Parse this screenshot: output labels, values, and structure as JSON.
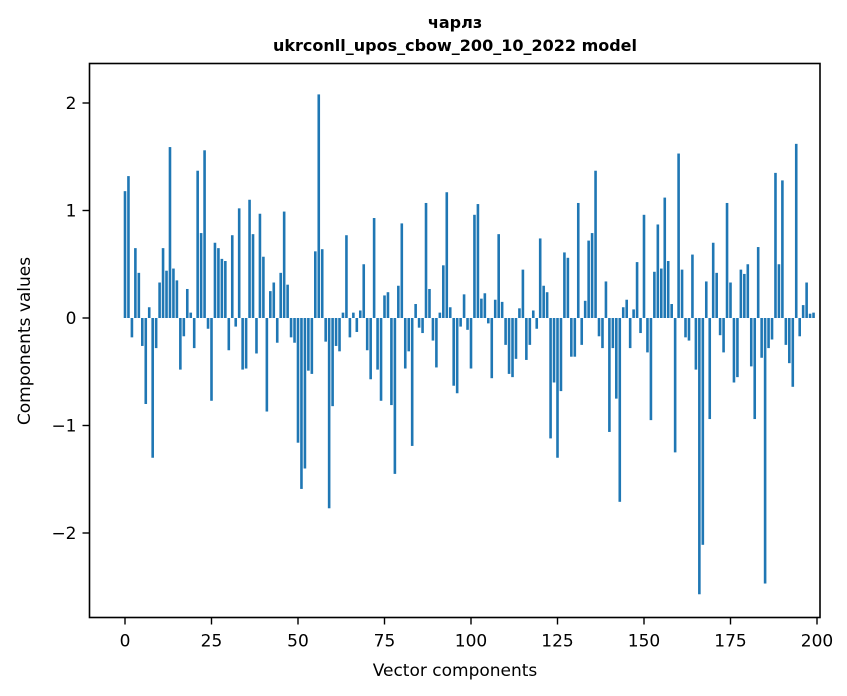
{
  "figure": {
    "background": "#ffffff",
    "spine_color": "#000000"
  },
  "chart_data": {
    "type": "bar",
    "title_line1": "чарлз",
    "title_line2": "ukrconll_upos_cbow_200_10_2022 model",
    "xlabel": "Vector components",
    "ylabel": "Components values",
    "bar_color": "#1f77b4",
    "grid": false,
    "legend": false,
    "x_start": 0,
    "x_end": 199,
    "xticks": [
      0,
      25,
      50,
      75,
      100,
      125,
      150,
      175,
      200
    ],
    "yticks": [
      2,
      1,
      0,
      -1,
      -2
    ],
    "xlim": [
      -10.2,
      200.9
    ],
    "ylim": [
      -2.79,
      2.37
    ],
    "values": [
      1.18,
      1.32,
      -0.18,
      0.65,
      0.42,
      -0.26,
      -0.8,
      0.1,
      -1.3,
      -0.28,
      0.33,
      0.65,
      0.44,
      1.59,
      0.46,
      0.35,
      -0.48,
      -0.17,
      0.27,
      0.05,
      -0.28,
      1.37,
      0.79,
      1.56,
      -0.1,
      -0.77,
      0.7,
      0.65,
      0.55,
      0.53,
      -0.3,
      0.77,
      -0.08,
      1.02,
      -0.48,
      -0.47,
      1.1,
      0.78,
      -0.33,
      0.97,
      0.57,
      -0.87,
      0.25,
      0.33,
      -0.23,
      0.42,
      0.99,
      0.31,
      -0.18,
      -0.23,
      -1.16,
      -1.59,
      -1.4,
      -0.49,
      -0.52,
      0.62,
      2.08,
      0.64,
      -0.22,
      -1.77,
      -0.82,
      -0.26,
      -0.31,
      0.05,
      0.77,
      -0.18,
      0.05,
      -0.13,
      0.07,
      0.5,
      -0.3,
      -0.57,
      0.93,
      -0.48,
      -0.77,
      0.21,
      0.24,
      -0.81,
      -1.45,
      0.3,
      0.88,
      -0.47,
      -0.31,
      -1.19,
      0.13,
      -0.09,
      -0.14,
      1.07,
      0.27,
      -0.21,
      -0.46,
      0.05,
      0.49,
      1.17,
      0.1,
      -0.63,
      -0.7,
      -0.08,
      0.22,
      -0.11,
      -0.47,
      0.96,
      1.06,
      0.18,
      0.23,
      -0.05,
      -0.56,
      0.17,
      0.78,
      0.15,
      -0.25,
      -0.52,
      -0.55,
      -0.38,
      0.09,
      0.45,
      -0.39,
      -0.25,
      0.07,
      -0.1,
      0.74,
      0.3,
      0.24,
      -1.12,
      -0.6,
      -1.3,
      -0.68,
      0.61,
      0.56,
      -0.36,
      -0.36,
      1.07,
      -0.25,
      0.16,
      0.72,
      0.79,
      1.37,
      -0.17,
      -0.28,
      0.34,
      -1.06,
      -0.28,
      -0.75,
      -1.71,
      0.1,
      0.17,
      -0.28,
      0.08,
      0.52,
      -0.14,
      0.96,
      -0.32,
      -0.95,
      0.43,
      0.87,
      0.46,
      1.12,
      0.53,
      0.13,
      -1.25,
      1.53,
      0.45,
      -0.18,
      -0.21,
      0.59,
      -0.48,
      -2.57,
      -2.11,
      0.34,
      -0.94,
      0.7,
      0.42,
      -0.16,
      -0.32,
      1.07,
      0.33,
      -0.6,
      -0.55,
      0.45,
      0.41,
      0.5,
      -0.45,
      -0.94,
      0.66,
      -0.37,
      -2.47,
      -0.28,
      -0.2,
      1.35,
      0.5,
      1.28,
      -0.25,
      -0.42,
      -0.64,
      1.62,
      -0.17,
      0.12,
      0.33,
      0.04,
      0.05
    ]
  }
}
